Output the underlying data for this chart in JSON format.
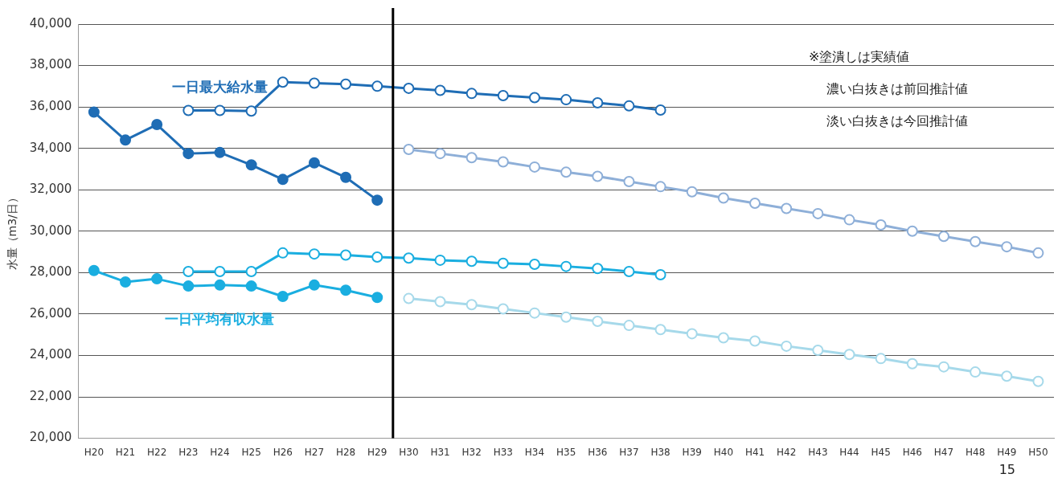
{
  "chart_data": {
    "type": "line",
    "ylabel": "水量（m3/日）",
    "categories": [
      "H20",
      "H21",
      "H22",
      "H23",
      "H24",
      "H25",
      "H26",
      "H27",
      "H28",
      "H29",
      "H30",
      "H31",
      "H32",
      "H33",
      "H34",
      "H35",
      "H36",
      "H37",
      "H38",
      "H39",
      "H40",
      "H41",
      "H42",
      "H43",
      "H44",
      "H45",
      "H46",
      "H47",
      "H48",
      "H49",
      "H50"
    ],
    "ylim": [
      20000,
      40000
    ],
    "yticks": [
      {
        "value": 20000,
        "label": "20,000"
      },
      {
        "value": 22000,
        "label": "22,000"
      },
      {
        "value": 24000,
        "label": "24,000"
      },
      {
        "value": 26000,
        "label": "26,000"
      },
      {
        "value": 28000,
        "label": "28,000"
      },
      {
        "value": 30000,
        "label": "30,000"
      },
      {
        "value": 32000,
        "label": "32,000"
      },
      {
        "value": 34000,
        "label": "34,000"
      },
      {
        "value": 36000,
        "label": "36,000"
      },
      {
        "value": 38000,
        "label": "38,000"
      },
      {
        "value": 40000,
        "label": "40,000"
      }
    ],
    "grid": "y",
    "legend": false,
    "marker": "circle",
    "line_style": "solid",
    "series": [
      {
        "name": "一日最大給水量",
        "color": "#1f6db5",
        "values": [
          35750,
          34400,
          35150,
          33750,
          33800,
          33200,
          32500,
          33300,
          32600,
          31500,
          null,
          null,
          null,
          null,
          null,
          null,
          null,
          null,
          null,
          null,
          null,
          null,
          null,
          null,
          null,
          null,
          null,
          null,
          null,
          null,
          null
        ]
      },
      {
        "color": "#1f6db5",
        "values": [
          null,
          null,
          null,
          35830,
          35830,
          35800,
          37200,
          37150,
          37100,
          37000,
          36900,
          36800,
          36650,
          36550,
          36450,
          36350,
          36200,
          36050,
          35850,
          null,
          null,
          null,
          null,
          null,
          null,
          null,
          null,
          null,
          null,
          null,
          null
        ]
      },
      {
        "color": "#8eafd8",
        "values": [
          null,
          null,
          null,
          null,
          null,
          null,
          null,
          null,
          null,
          null,
          33950,
          33750,
          33550,
          33350,
          33100,
          32850,
          32650,
          32400,
          32150,
          31900,
          31600,
          31350,
          31100,
          30850,
          30550,
          30300,
          30000,
          29750,
          29500,
          29250,
          28950
        ]
      },
      {
        "name": "一日平均有収水量",
        "color": "#1aaee0",
        "values": [
          28100,
          27550,
          27700,
          27350,
          27400,
          27350,
          26850,
          27400,
          27150,
          26800,
          null,
          null,
          null,
          null,
          null,
          null,
          null,
          null,
          null,
          null,
          null,
          null,
          null,
          null,
          null,
          null,
          null,
          null,
          null,
          null,
          null
        ]
      },
      {
        "color": "#1aaee0",
        "values": [
          null,
          null,
          null,
          28050,
          28050,
          28050,
          28950,
          28900,
          28850,
          28750,
          28700,
          28600,
          28550,
          28450,
          28400,
          28300,
          28200,
          28050,
          27900,
          null,
          null,
          null,
          null,
          null,
          null,
          null,
          null,
          null,
          null,
          null,
          null
        ]
      },
      {
        "color": "#a6d9ea",
        "values": [
          null,
          null,
          null,
          null,
          null,
          null,
          null,
          null,
          null,
          null,
          26750,
          26600,
          26450,
          26250,
          26050,
          25850,
          25650,
          25450,
          25250,
          25050,
          24850,
          24700,
          24450,
          24250,
          24050,
          23850,
          23600,
          23450,
          23200,
          23000,
          22750
        ]
      }
    ],
    "ref_lines": [
      {
        "axis": "x",
        "value": "H29",
        "color": "#000000"
      }
    ],
    "annotations": [
      "※塗潰しは実績値",
      "濃い白抜きは前回推計値",
      "淡い白抜きは今回推計値",
      "15"
    ]
  }
}
